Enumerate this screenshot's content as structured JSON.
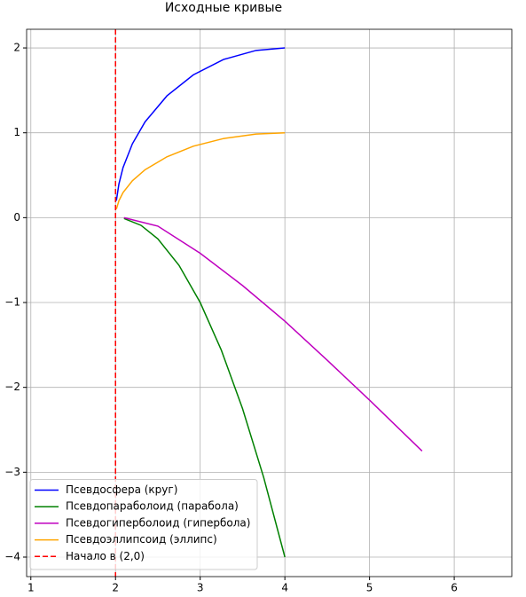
{
  "chart_data": {
    "type": "line",
    "title": "Исходные кривые",
    "xlim": [
      0.95,
      6.68
    ],
    "ylim": [
      -4.23,
      2.22
    ],
    "xticks": [
      1,
      2,
      3,
      4,
      5,
      6
    ],
    "yticks": [
      {
        "value": -4,
        "label": "−4"
      },
      {
        "value": -3,
        "label": "−3"
      },
      {
        "value": -2,
        "label": "−2"
      },
      {
        "value": -1,
        "label": "−1"
      },
      0,
      1,
      2
    ],
    "grid": true,
    "legend": "lower left",
    "series": [
      {
        "name": "Псевдосфера (круг)",
        "color": "#0000ff",
        "x": [
          2.01,
          2.04,
          2.089,
          2.199,
          2.349,
          2.607,
          2.919,
          3.275,
          3.66,
          4
        ],
        "values": [
          0.2,
          0.397,
          0.591,
          0.87,
          1.129,
          1.435,
          1.683,
          1.864,
          1.971,
          2
        ]
      },
      {
        "name": "Псевдопараболоид (парабола)",
        "color": "#008000",
        "x": [
          2.1,
          2.3,
          2.5,
          2.75,
          3,
          3.25,
          3.5,
          3.75,
          4
        ],
        "values": [
          -0.01,
          -0.09,
          -0.25,
          -0.5625,
          -1,
          -1.5625,
          -2.25,
          -3.0625,
          -4
        ]
      },
      {
        "name": "Псевдогиперболоид (гипербола)",
        "color": "#bf00bf",
        "x": [
          2.1,
          2.5,
          3,
          3.5,
          4,
          4.5,
          5,
          5.62
        ],
        "values": [
          0,
          -0.1,
          -0.42,
          -0.8,
          -1.22,
          -1.68,
          -2.15,
          -2.75
        ]
      },
      {
        "name": "Псевдоэллипсоид (эллипс)",
        "color": "#ffa500",
        "x": [
          2.01,
          2.04,
          2.089,
          2.199,
          2.349,
          2.607,
          2.919,
          3.275,
          3.66,
          4
        ],
        "values": [
          0.1,
          0.199,
          0.296,
          0.435,
          0.565,
          0.717,
          0.842,
          0.932,
          0.985,
          1
        ]
      }
    ],
    "vline": {
      "name": "Начало в (2,0)",
      "x": 2,
      "color": "#ff0000"
    }
  }
}
